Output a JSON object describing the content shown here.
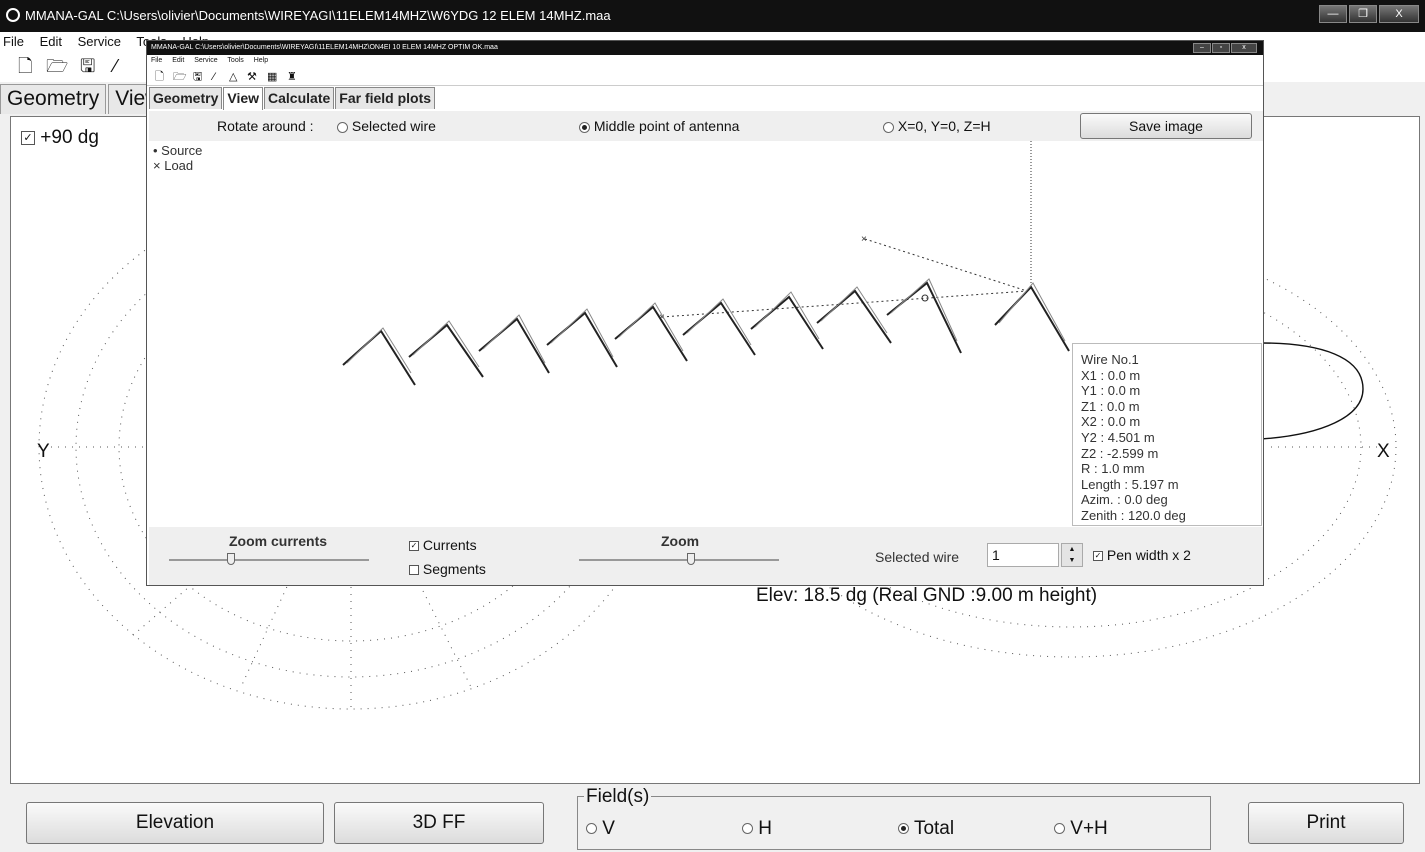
{
  "window": {
    "title": "MMANA-GAL C:\\Users\\olivier\\Documents\\WIREYAGI\\11ELEM14MHZ\\W6YDG 12 ELEM 14MHZ.maa",
    "buttons": [
      "—",
      "❐",
      "X"
    ]
  },
  "menu": [
    "File",
    "Edit",
    "Service",
    "Tools",
    "Help"
  ],
  "tabs": [
    "Geometry",
    "View"
  ],
  "plot": {
    "elevation_checkbox": "+90 dg",
    "y_axis": "Y",
    "x_axis": "X",
    "elev_text": "Elev: 18.5 dg (Real GND  :9.00 m height)"
  },
  "bottom": {
    "elevation_button": "Elevation",
    "ff3d_button": "3D FF",
    "print_button": "Print",
    "fields_legend": "Field(s)",
    "fields": [
      {
        "label": "V",
        "selected": false
      },
      {
        "label": "H",
        "selected": false
      },
      {
        "label": "Total",
        "selected": true
      },
      {
        "label": "V+H",
        "selected": false
      }
    ]
  },
  "inner": {
    "title": "MMANA-GAL C:\\Users\\olivier\\Documents\\WIREYAGI\\11ELEM14MHZ\\ON4EI 10 ELEM 14MHZ OPTIM OK.maa",
    "menu": [
      "File",
      "Edit",
      "Service",
      "Tools",
      "Help"
    ],
    "tabs": [
      "Geometry",
      "View",
      "Calculate",
      "Far field plots"
    ],
    "active_tab": "View",
    "rotate_label": "Rotate around :",
    "rotate_options": [
      {
        "label": "Selected wire",
        "selected": false
      },
      {
        "label": "Middle point of antenna",
        "selected": true
      },
      {
        "label": "X=0, Y=0, Z=H",
        "selected": false
      }
    ],
    "save_button": "Save image",
    "legend_source": "Source",
    "legend_load": "Load",
    "wire_info": [
      "Wire No.1",
      "X1   : 0.0 m",
      "Y1   : 0.0 m",
      "Z1   : 0.0 m",
      "X2   : 0.0 m",
      "Y2   : 4.501 m",
      "Z2   : -2.599 m",
      "R   : 1.0 mm",
      "Length  : 5.197 m",
      "Azim.   : 0.0 deg",
      "Zenith  : 120.0 deg"
    ],
    "zoom_currents": "Zoom currents",
    "zoom": "Zoom",
    "currents": "Currents",
    "segments": "Segments",
    "selected_wire_label": "Selected wire",
    "selected_wire_value": "1",
    "pen_width": "Pen width x 2",
    "currents_checked": true,
    "segments_checked": false,
    "pen_checked": true
  }
}
